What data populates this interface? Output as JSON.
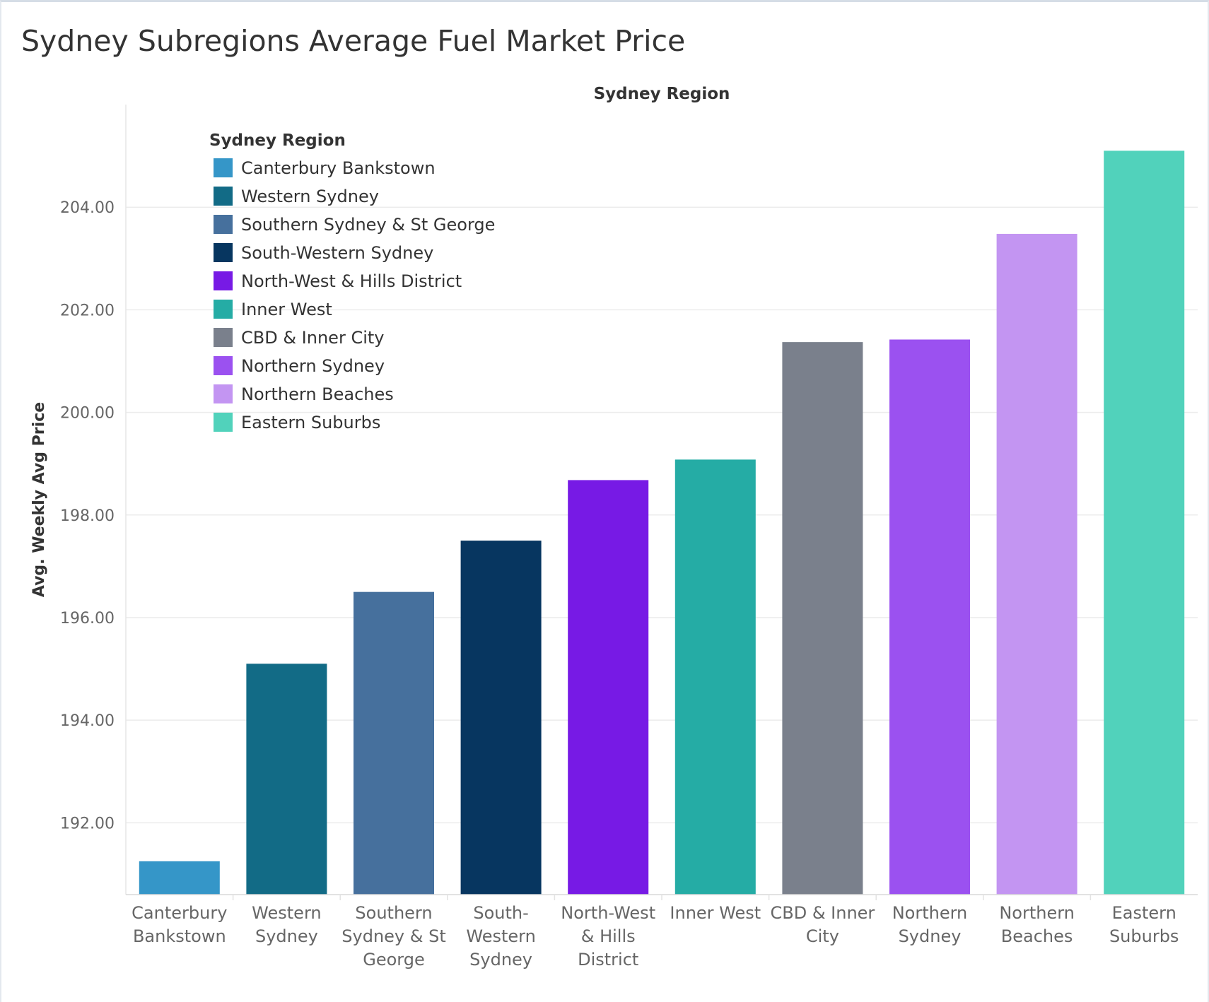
{
  "title": "Sydney Subregions Average Fuel Market Price",
  "chart_data": {
    "type": "bar",
    "title": "Sydney Subregions Average Fuel Market Price",
    "header": "Sydney Region",
    "xlabel": "",
    "ylabel": "Avg. Weekly Avg Price",
    "ylim": [
      190.6,
      206.0
    ],
    "yticks": [
      "192.00",
      "194.00",
      "196.00",
      "198.00",
      "200.00",
      "202.00",
      "204.00"
    ],
    "grid": true,
    "legend_position": "top-left inside",
    "legend_title": "Sydney Region",
    "categories": [
      {
        "name": "Canterbury Bankstown",
        "label_lines": [
          "Canterbury",
          "Bankstown"
        ],
        "value": 191.25,
        "color": "#3596c8"
      },
      {
        "name": "Western Sydney",
        "label_lines": [
          "Western",
          "Sydney"
        ],
        "value": 195.1,
        "color": "#126b86"
      },
      {
        "name": "Southern Sydney & St George",
        "label_lines": [
          "Southern",
          "Sydney & St",
          "George"
        ],
        "value": 196.5,
        "color": "#46709d"
      },
      {
        "name": "South-Western Sydney",
        "label_lines": [
          "South-",
          "Western",
          "Sydney"
        ],
        "value": 197.5,
        "color": "#073660"
      },
      {
        "name": "North-West & Hills District",
        "label_lines": [
          "North-West",
          "& Hills",
          "District"
        ],
        "value": 198.68,
        "color": "#771ae5"
      },
      {
        "name": "Inner West",
        "label_lines": [
          "Inner West"
        ],
        "value": 199.08,
        "color": "#25aca5"
      },
      {
        "name": "CBD & Inner City",
        "label_lines": [
          "CBD & Inner",
          "City"
        ],
        "value": 201.37,
        "color": "#7a808c"
      },
      {
        "name": "Northern Sydney",
        "label_lines": [
          "Northern",
          "Sydney"
        ],
        "value": 201.42,
        "color": "#9b51f0"
      },
      {
        "name": "Northern Beaches",
        "label_lines": [
          "Northern",
          "Beaches"
        ],
        "value": 203.48,
        "color": "#c395f2"
      },
      {
        "name": "Eastern Suburbs",
        "label_lines": [
          "Eastern",
          "Suburbs"
        ],
        "value": 205.1,
        "color": "#51d2bb"
      }
    ]
  }
}
